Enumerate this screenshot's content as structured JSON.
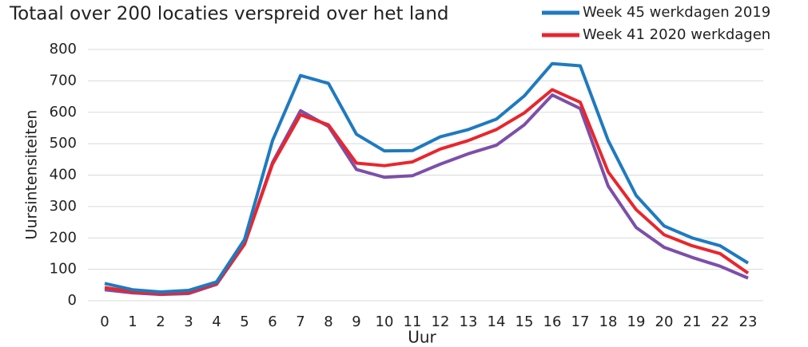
{
  "chart_data": {
    "type": "line",
    "title": "Totaal over 200 locaties verspreid over het land",
    "x_label": "Uur",
    "y_label": "Uursintensiteiten",
    "x": [
      0,
      1,
      2,
      3,
      4,
      5,
      6,
      7,
      8,
      9,
      10,
      11,
      12,
      13,
      14,
      15,
      16,
      17,
      18,
      19,
      20,
      21,
      22,
      23
    ],
    "xlim": [
      0,
      23
    ],
    "xticks": [
      0,
      1,
      2,
      3,
      4,
      5,
      6,
      7,
      8,
      9,
      10,
      11,
      12,
      13,
      14,
      15,
      16,
      17,
      18,
      19,
      20,
      21,
      22,
      23
    ],
    "ylim": [
      0,
      800
    ],
    "yticks": [
      0,
      100,
      200,
      300,
      400,
      500,
      600,
      700,
      800
    ],
    "grid": true,
    "series": [
      {
        "color": "#7d4fa8",
        "values": [
          35,
          25,
          20,
          23,
          52,
          180,
          440,
          605,
          555,
          418,
          393,
          398,
          435,
          468,
          495,
          560,
          655,
          612,
          365,
          233,
          170,
          138,
          110,
          72
        ]
      },
      {
        "name": "Week 41 2020 werkdagen",
        "color": "#e8262d",
        "values": [
          42,
          28,
          22,
          26,
          55,
          180,
          435,
          592,
          560,
          438,
          430,
          442,
          483,
          510,
          545,
          598,
          672,
          632,
          410,
          290,
          210,
          175,
          150,
          88
        ]
      },
      {
        "name": "Week 45 werkdagen 2019",
        "color": "#1f7ac0",
        "values": [
          55,
          35,
          28,
          33,
          60,
          195,
          510,
          717,
          692,
          530,
          477,
          478,
          522,
          545,
          578,
          652,
          755,
          748,
          510,
          335,
          238,
          200,
          175,
          120
        ]
      }
    ]
  }
}
